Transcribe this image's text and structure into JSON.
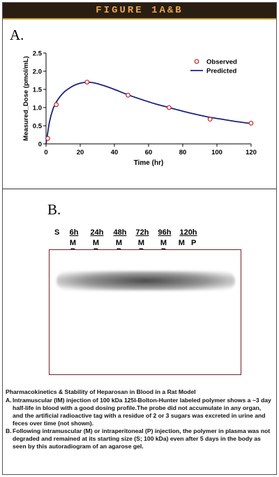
{
  "banner": {
    "title": "FIGURE 1A&B"
  },
  "panel_a": {
    "label": "A."
  },
  "panel_b": {
    "label": "B.",
    "lane_s": "S",
    "lanes": [
      {
        "time": "6h",
        "mp": "M P"
      },
      {
        "time": "24h",
        "mp": "M P"
      },
      {
        "time": "48h",
        "mp": "M P"
      },
      {
        "time": "72h",
        "mp": "M P"
      },
      {
        "time": "96h",
        "mp": "M P"
      },
      {
        "time": "120h",
        "mp": "M P"
      }
    ]
  },
  "chart_data": {
    "type": "scatter",
    "title": "",
    "xlabel": "Time (hr)",
    "ylabel": "Measured_Dose (pmol/mL)",
    "xlim": [
      0,
      120
    ],
    "ylim": [
      0,
      2.5
    ],
    "xticks": [
      0,
      20,
      40,
      60,
      80,
      100,
      120
    ],
    "yticks": [
      0,
      0.5,
      1.0,
      1.5,
      2.0,
      2.5
    ],
    "ytick_labels": [
      "0",
      "0.5",
      "1.0",
      "1.5",
      "2.0",
      "2.5"
    ],
    "grid": false,
    "legend": "top-right",
    "series": [
      {
        "name": "Observed",
        "kind": "markers",
        "color": "#cc2222",
        "x": [
          1,
          6,
          24,
          48,
          72,
          96,
          120
        ],
        "y": [
          0.15,
          1.08,
          1.7,
          1.34,
          1.0,
          0.68,
          0.57
        ]
      },
      {
        "name": "Predicted",
        "kind": "line",
        "color": "#1a237e",
        "x": [
          0,
          2,
          4,
          6,
          8,
          10,
          12,
          16,
          20,
          24,
          28,
          32,
          36,
          40,
          48,
          56,
          64,
          72,
          80,
          88,
          96,
          104,
          112,
          120
        ],
        "y": [
          0,
          0.6,
          0.95,
          1.15,
          1.29,
          1.4,
          1.48,
          1.6,
          1.67,
          1.7,
          1.68,
          1.63,
          1.57,
          1.5,
          1.35,
          1.22,
          1.1,
          1.0,
          0.9,
          0.81,
          0.73,
          0.67,
          0.61,
          0.56
        ]
      }
    ]
  },
  "caption": {
    "title": "Pharmacokinetics & Stability of Heparosan in Blood in a Rat Model",
    "items": [
      {
        "letter": "A.",
        "text": "Intramuscular (IM) injection of 100 kDa 125I-Bolton-Hunter labeled polymer shows a ~3 day half-life in blood with a good dosing profile.The probe did not accumulate in any organ, and the artificial radioactive tag with a residue of 2 or 3 sugars was excreted in urine and feces over time (not shown)."
      },
      {
        "letter": "B.",
        "text": "Following intramuscular (M) or intraperitoneal (P) injection, the polymer in plasma was not degraded and remained at its starting size (S; 100 kDa) even after 5 days in the body as seen by this autoradiogram of an agarose gel."
      }
    ]
  }
}
